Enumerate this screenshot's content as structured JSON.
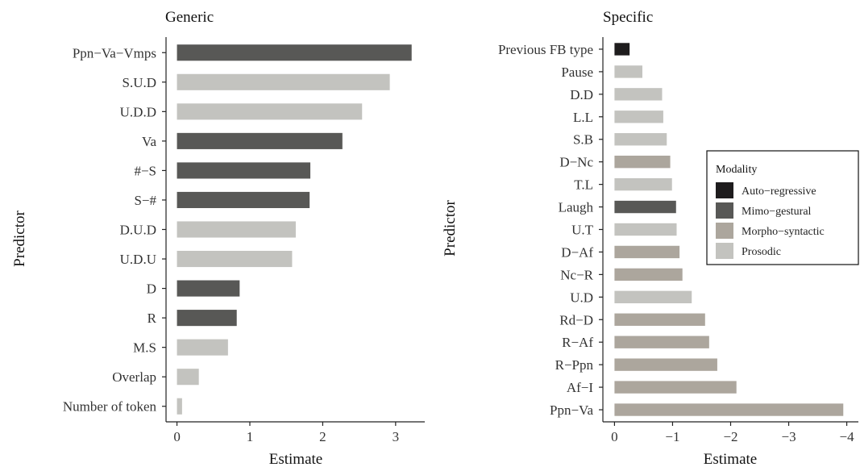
{
  "legend": {
    "title": "Modality",
    "items": [
      {
        "key": "auto",
        "label": "Auto−regressive",
        "color": "#1e1c1d"
      },
      {
        "key": "mimo",
        "label": "Mimo−gestural",
        "color": "#585856"
      },
      {
        "key": "morpho",
        "label": "Morpho−syntactic",
        "color": "#aca69d"
      },
      {
        "key": "prosodic",
        "label": "Prosodic",
        "color": "#c3c3bf"
      }
    ]
  },
  "chart_data": [
    {
      "type": "bar",
      "orientation": "horizontal",
      "title": "Generic",
      "xlabel": "Estimate",
      "ylabel": "Predictor",
      "xlim": [
        -0.15,
        3.4
      ],
      "xticks": [
        0,
        1,
        2,
        3
      ],
      "xtick_labels": [
        "0",
        "1",
        "2",
        "3"
      ],
      "grid": false,
      "categories": [
        "Ppn−Va−Vmps",
        "S.U.D",
        "U.D.D",
        "Va",
        "#−S",
        "S−#",
        "D.U.D",
        "U.D.U",
        "D",
        "R",
        "M.S",
        "Overlap",
        "Number of token"
      ],
      "values": [
        3.22,
        2.92,
        2.54,
        2.27,
        1.83,
        1.82,
        1.63,
        1.58,
        0.86,
        0.82,
        0.7,
        0.3,
        0.07
      ],
      "modality": [
        "mimo",
        "prosodic",
        "prosodic",
        "mimo",
        "mimo",
        "mimo",
        "prosodic",
        "prosodic",
        "mimo",
        "mimo",
        "prosodic",
        "prosodic",
        "prosodic"
      ]
    },
    {
      "type": "bar",
      "orientation": "horizontal",
      "title": "Specific",
      "xlabel": "Estimate",
      "ylabel": "Predictor",
      "xlim": [
        0.2,
        -4.2
      ],
      "x_reversed": true,
      "xticks": [
        0,
        -1,
        -2,
        -3,
        -4
      ],
      "xtick_labels": [
        "0",
        "−1",
        "−2",
        "−3",
        "−4"
      ],
      "grid": false,
      "legend_position": "right",
      "categories": [
        "Previous FB type",
        "Pause",
        "D.D",
        "L.L",
        "S.B",
        "D−Nc",
        "T.L",
        "Laugh",
        "U.T",
        "D−Af",
        "Nc−R",
        "U.D",
        "Rd−D",
        "R−Af",
        "R−Ppn",
        "Af−I",
        "Ppn−Va"
      ],
      "values": [
        -0.26,
        -0.48,
        -0.82,
        -0.84,
        -0.9,
        -0.96,
        -0.99,
        -1.06,
        -1.07,
        -1.12,
        -1.17,
        -1.33,
        -1.56,
        -1.63,
        -1.77,
        -2.1,
        -3.94
      ],
      "modality": [
        "auto",
        "prosodic",
        "prosodic",
        "prosodic",
        "prosodic",
        "morpho",
        "prosodic",
        "mimo",
        "prosodic",
        "morpho",
        "morpho",
        "prosodic",
        "morpho",
        "morpho",
        "morpho",
        "morpho",
        "morpho"
      ]
    }
  ]
}
